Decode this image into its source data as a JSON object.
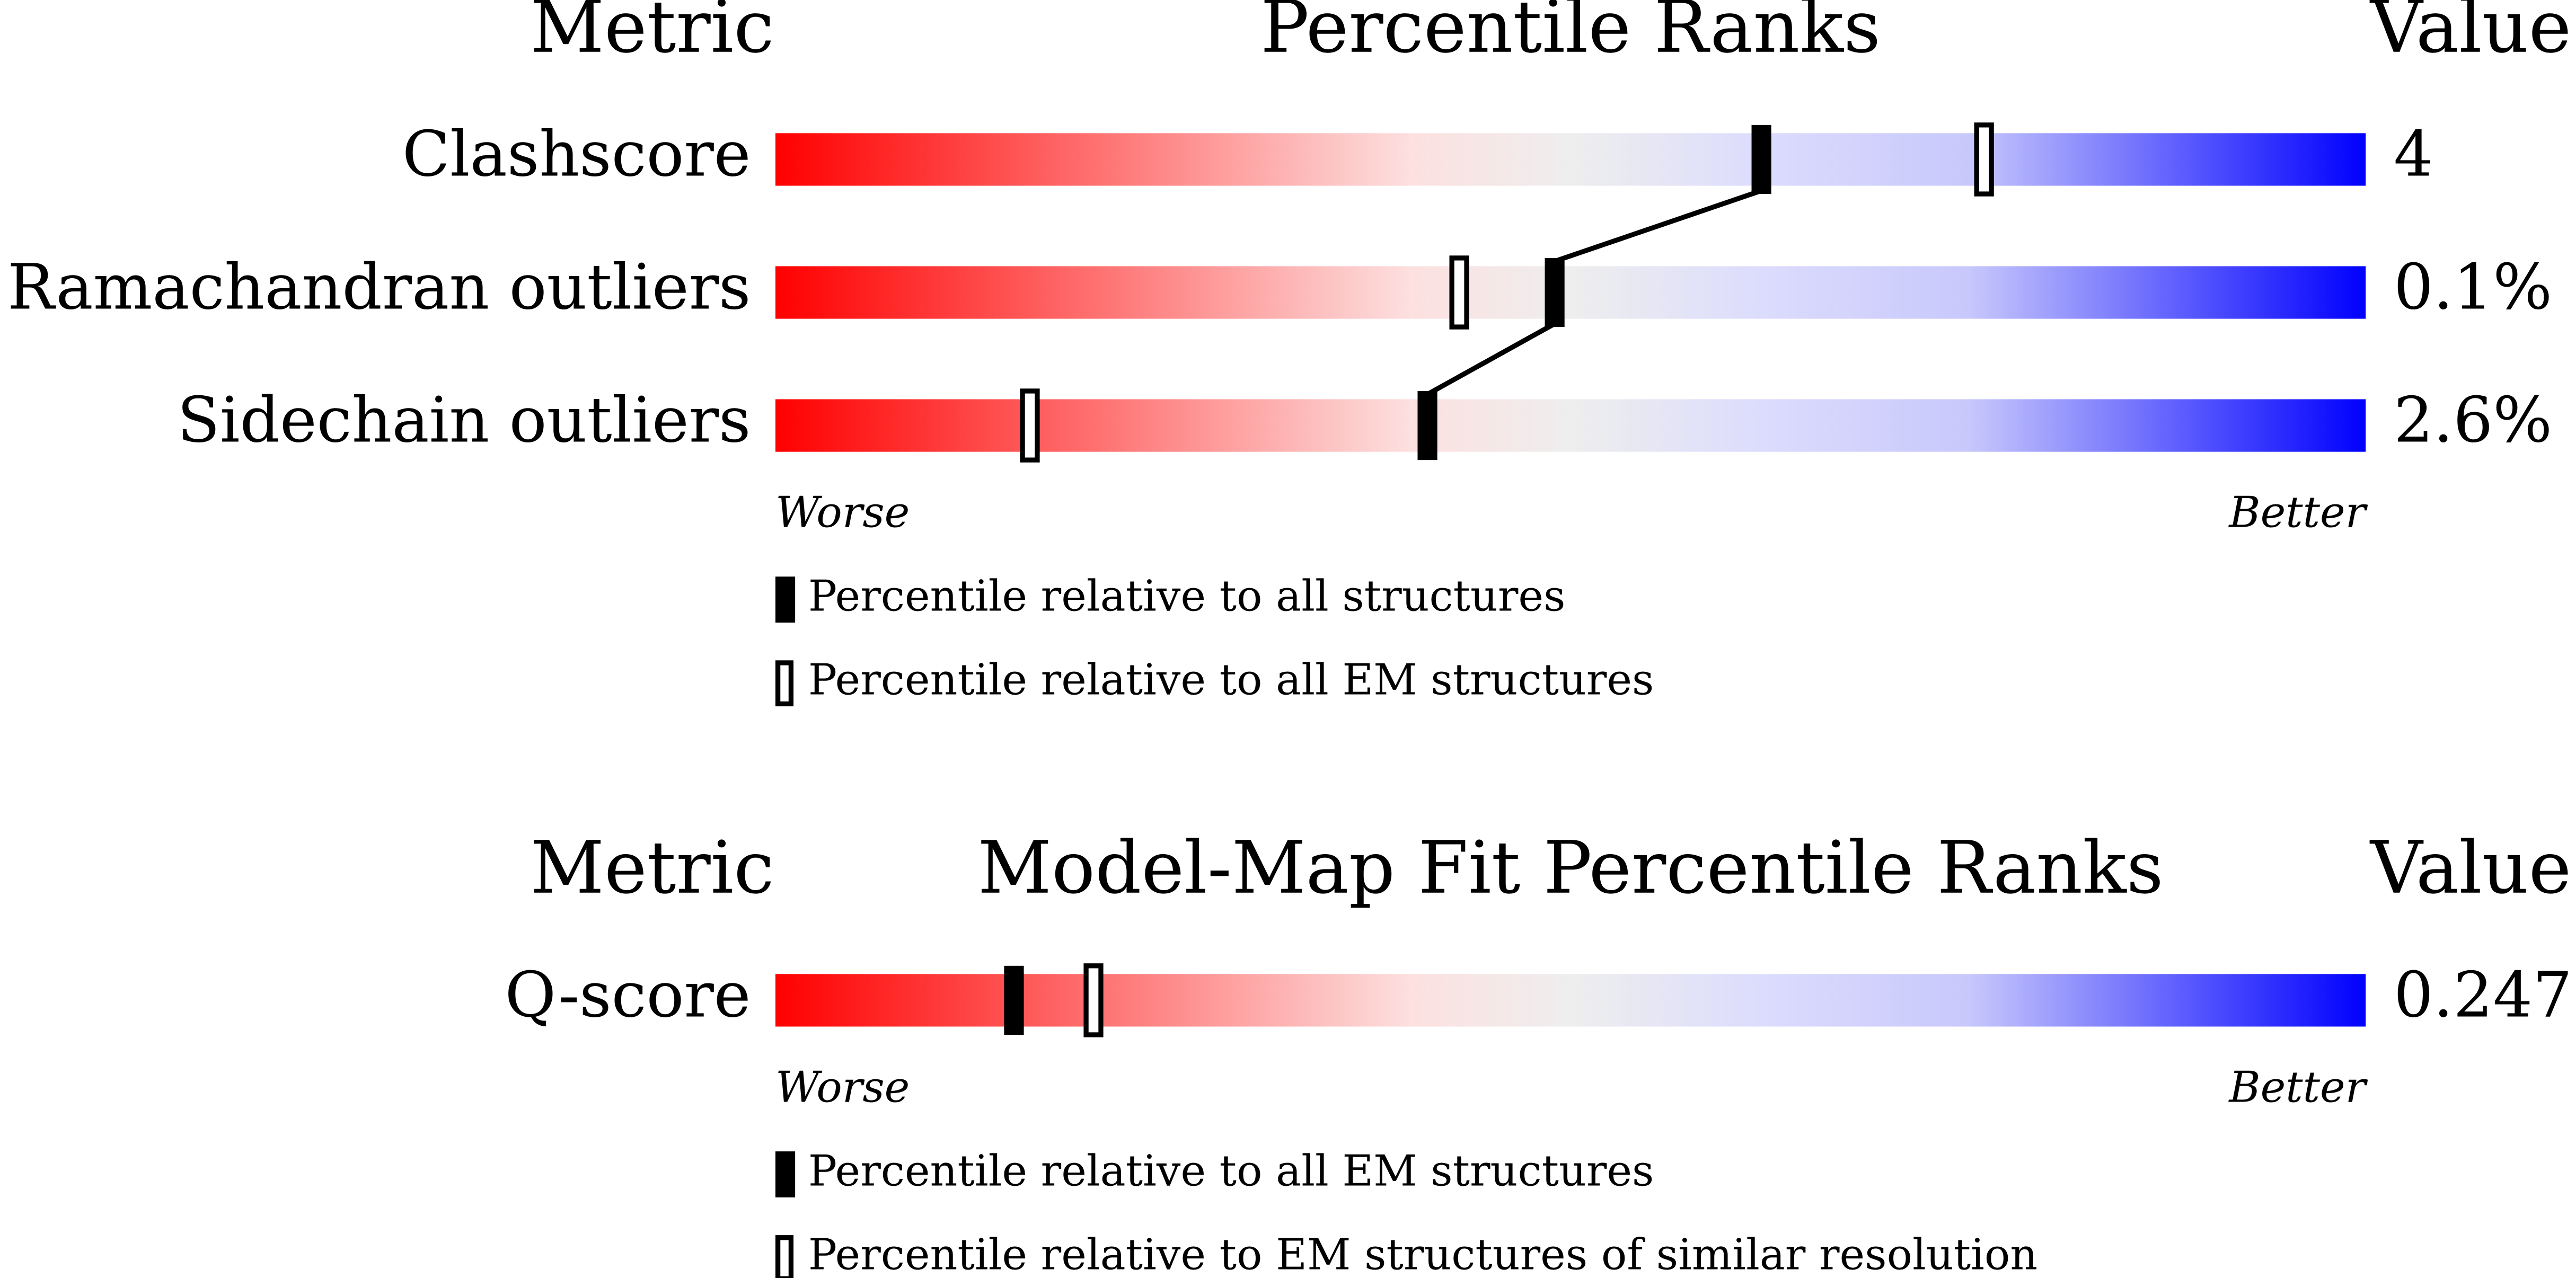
{
  "chart_data": [
    {
      "type": "percentile",
      "metric_header": "Metric",
      "title": "Percentile Ranks",
      "value_header": "Value",
      "categories": [
        "Clashscore",
        "Ramachandran outliers",
        "Sidechain outliers"
      ],
      "metric_values": [
        "4",
        "0.1%",
        "2.6%"
      ],
      "series": [
        {
          "name": "Percentile relative to all structures",
          "style": "filled",
          "color": "#000000",
          "values": [
            62,
            49,
            41
          ]
        },
        {
          "name": "Percentile relative to all EM structures",
          "style": "open",
          "color": "#000000",
          "values": [
            76,
            43,
            16
          ]
        }
      ],
      "xlim": [
        0,
        100
      ],
      "worse_label": "Worse",
      "better_label": "Better"
    },
    {
      "type": "percentile",
      "metric_header": "Metric",
      "title": "Model-Map Fit Percentile Ranks",
      "value_header": "Value",
      "categories": [
        "Q-score"
      ],
      "metric_values": [
        "0.247"
      ],
      "series": [
        {
          "name": "Percentile relative to all EM structures",
          "style": "filled",
          "color": "#000000",
          "values": [
            15
          ]
        },
        {
          "name": "Percentile relative to EM structures of similar resolution",
          "style": "open",
          "color": "#000000",
          "values": [
            20
          ]
        }
      ],
      "xlim": [
        0,
        100
      ],
      "worse_label": "Worse",
      "better_label": "Better"
    }
  ]
}
